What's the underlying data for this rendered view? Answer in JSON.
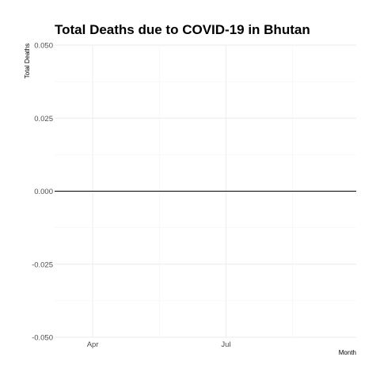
{
  "chart_data": {
    "type": "line",
    "title": "Total Deaths due to COVID-19 in Bhutan",
    "xlabel": "Month",
    "ylabel": "Total Deaths",
    "x_tick_labels": [
      "Apr",
      "Jul"
    ],
    "x_tick_values": [
      "2020-04-01",
      "2020-07-01"
    ],
    "xlim": [
      "2020-03-06",
      "2020-09-28"
    ],
    "ylim": [
      -0.05,
      0.05
    ],
    "y_ticks": [
      -0.05,
      -0.025,
      0,
      0.025,
      0.05
    ],
    "y_tick_labels": [
      "-0.050",
      "-0.025",
      "0.000",
      "0.025",
      "0.050"
    ],
    "grid": true,
    "series": [
      {
        "color": "#000000",
        "x": [
          "2020-03-06",
          "2020-09-28"
        ],
        "values": [
          0,
          0
        ]
      }
    ]
  }
}
